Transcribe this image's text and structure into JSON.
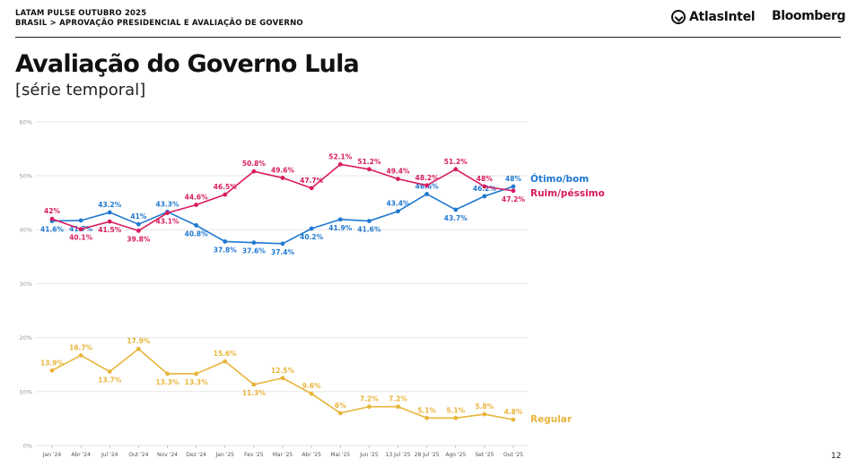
{
  "header": {
    "line1": "LATAM PULSE OUTUBRO 2025",
    "line2": "BRASIL > APROVAÇÃO PRESIDENCIAL E AVALIAÇÃO DE GOVERNO",
    "brand_atlas": "AtlasIntel",
    "brand_bloomberg": "Bloomberg"
  },
  "title": "Avaliação do Governo Lula",
  "subtitle": "[série temporal]",
  "page_number": "12",
  "colors": {
    "otimo": "#1f78d1",
    "ruim": "#d81b60",
    "regular": "#e8b53a",
    "grid": "#e6e6e6",
    "axis_text": "#999999"
  },
  "chart_data": {
    "type": "line",
    "x": [
      "Jan '24",
      "Abr '24",
      "Jul '24",
      "Out '24",
      "Nov '24",
      "Dez '24",
      "Jan '25",
      "Fev '25",
      "Mar '25",
      "Abr '25",
      "Mai '25",
      "Jun '25",
      "13 Jul '25",
      "28 Jul '25",
      "Ago '25",
      "Set '25",
      "Out '25"
    ],
    "ylim": [
      0,
      60
    ],
    "yticks": [
      "0%",
      "10%",
      "20%",
      "30%",
      "40%",
      "50%",
      "60%"
    ],
    "grid": true,
    "series": [
      {
        "name": "Ótimo/bom",
        "values": [
          41.6,
          41.7,
          43.2,
          41,
          43.3,
          40.8,
          37.8,
          37.6,
          37.4,
          40.2,
          41.9,
          41.6,
          43.4,
          46.6,
          43.7,
          46.2,
          48
        ],
        "labels": [
          "41.6%",
          "41.7%",
          "43.2%",
          "41%",
          "43.3%",
          "40.8%",
          "37.8%",
          "37.6%",
          "37.4%",
          "40.2%",
          "41.9%",
          "41.6%",
          "43.4%",
          "46.6%",
          "43.7%",
          "46.2%",
          "48%"
        ]
      },
      {
        "name": "Ruim/péssimo",
        "values": [
          42,
          40.1,
          41.5,
          39.8,
          43.1,
          44.6,
          46.5,
          50.8,
          49.6,
          47.7,
          52.1,
          51.2,
          49.4,
          48.2,
          51.2,
          48,
          47.2
        ],
        "labels": [
          "42%",
          "40.1%",
          "41.5%",
          "39.8%",
          "43.1%",
          "44.6%",
          "46.5%",
          "50.8%",
          "49.6%",
          "47.7%",
          "52.1%",
          "51.2%",
          "49.4%",
          "48.2%",
          "51.2%",
          "48%",
          "47.2%"
        ]
      },
      {
        "name": "Regular",
        "values": [
          13.9,
          16.7,
          13.7,
          17.9,
          13.3,
          13.3,
          15.6,
          11.3,
          12.5,
          9.6,
          6,
          7.2,
          7.2,
          5.1,
          5.1,
          5.8,
          4.8
        ],
        "labels": [
          "13.9%",
          "16.7%",
          "13.7%",
          "17.9%",
          "13.3%",
          "13.3%",
          "15.6%",
          "11.3%",
          "12.5%",
          "9.6%",
          "6%",
          "7.2%",
          "7.2%",
          "5.1%",
          "5.1%",
          "5.8%",
          "4.8%"
        ]
      }
    ]
  }
}
